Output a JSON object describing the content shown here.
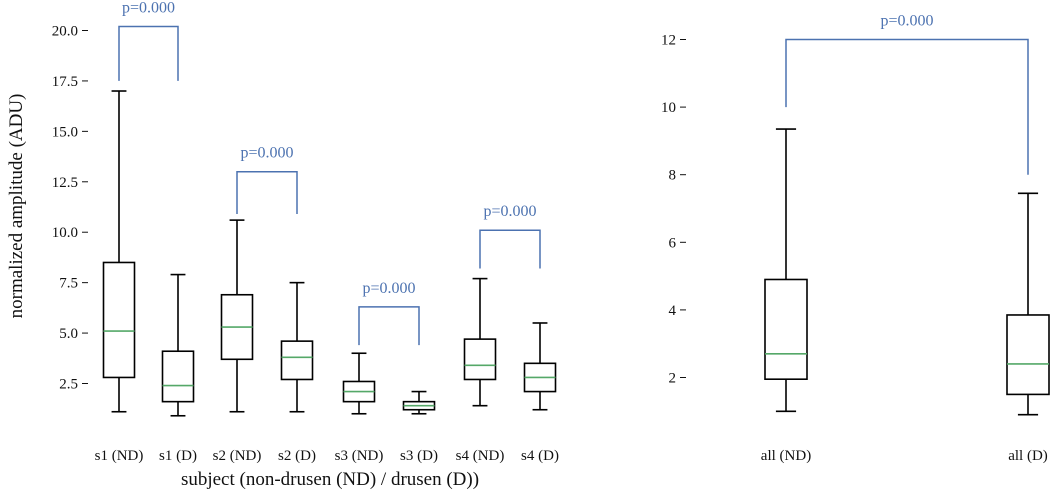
{
  "chart_data": [
    {
      "type": "box",
      "xlabel": "subject (non-drusen (ND) / drusen (D))",
      "ylabel": "normalized amplitude (ADU)",
      "ylim": [
        0.5,
        20.8
      ],
      "yticks": [
        2.5,
        5.0,
        7.5,
        10.0,
        12.5,
        15.0,
        17.5,
        20.0
      ],
      "ytick_labels": [
        "2.5",
        "5.0",
        "7.5",
        "10.0",
        "12.5",
        "15.0",
        "17.5",
        "20.0"
      ],
      "grid": false,
      "colors": {
        "box": "#000000",
        "median": "#55a868",
        "bracket": "#4c72b0"
      },
      "categories": [
        "s1 (ND)",
        "s1 (D)",
        "s2 (ND)",
        "s2 (D)",
        "s3 (ND)",
        "s3 (D)",
        "s4 (ND)",
        "s4 (D)"
      ],
      "boxes": [
        {
          "category": "s1 (ND)",
          "whislo": 1.1,
          "q1": 2.8,
          "med": 5.1,
          "q3": 8.5,
          "whishi": 17.0
        },
        {
          "category": "s1 (D)",
          "whislo": 0.9,
          "q1": 1.6,
          "med": 2.4,
          "q3": 4.1,
          "whishi": 7.9
        },
        {
          "category": "s2 (ND)",
          "whislo": 1.1,
          "q1": 3.7,
          "med": 5.3,
          "q3": 6.9,
          "whishi": 10.6
        },
        {
          "category": "s2 (D)",
          "whislo": 1.1,
          "q1": 2.7,
          "med": 3.8,
          "q3": 4.6,
          "whishi": 7.5
        },
        {
          "category": "s3 (ND)",
          "whislo": 1.0,
          "q1": 1.6,
          "med": 2.1,
          "q3": 2.6,
          "whishi": 4.0
        },
        {
          "category": "s3 (D)",
          "whislo": 1.0,
          "q1": 1.2,
          "med": 1.4,
          "q3": 1.6,
          "whishi": 2.1
        },
        {
          "category": "s4 (ND)",
          "whislo": 1.4,
          "q1": 2.7,
          "med": 3.4,
          "q3": 4.7,
          "whishi": 7.7
        },
        {
          "category": "s4 (D)",
          "whislo": 1.2,
          "q1": 2.1,
          "med": 2.8,
          "q3": 3.5,
          "whishi": 5.5
        }
      ],
      "annotations": [
        {
          "text": "p=0.000",
          "pair": [
            "s1 (ND)",
            "s1 (D)"
          ],
          "leg_bottoms": [
            17.5,
            17.5
          ],
          "top": 20.2
        },
        {
          "text": "p=0.000",
          "pair": [
            "s2 (ND)",
            "s2 (D)"
          ],
          "leg_bottoms": [
            10.9,
            10.9
          ],
          "top": 13.0
        },
        {
          "text": "p=0.000",
          "pair": [
            "s3 (ND)",
            "s3 (D)"
          ],
          "leg_bottoms": [
            4.4,
            4.4
          ],
          "top": 6.3
        },
        {
          "text": "p=0.000",
          "pair": [
            "s4 (ND)",
            "s4 (D)"
          ],
          "leg_bottoms": [
            8.2,
            8.2
          ],
          "top": 10.1
        }
      ]
    },
    {
      "type": "box",
      "xlabel": "",
      "ylabel": "",
      "ylim": [
        0.6,
        13.0
      ],
      "yticks": [
        2,
        4,
        6,
        8,
        10,
        12
      ],
      "ytick_labels": [
        "2",
        "4",
        "6",
        "8",
        "10",
        "12"
      ],
      "grid": false,
      "colors": {
        "box": "#000000",
        "median": "#55a868",
        "bracket": "#4c72b0"
      },
      "categories": [
        "all (ND)",
        "all (D)"
      ],
      "boxes": [
        {
          "category": "all (ND)",
          "whislo": 1.0,
          "q1": 1.95,
          "med": 2.7,
          "q3": 4.9,
          "whishi": 9.35
        },
        {
          "category": "all (D)",
          "whislo": 0.9,
          "q1": 1.5,
          "med": 2.4,
          "q3": 3.85,
          "whishi": 7.45
        }
      ],
      "annotations": [
        {
          "text": "p=0.000",
          "pair": [
            "all (ND)",
            "all (D)"
          ],
          "leg_bottoms": [
            10.0,
            8.0
          ],
          "top": 12.0
        }
      ]
    }
  ]
}
